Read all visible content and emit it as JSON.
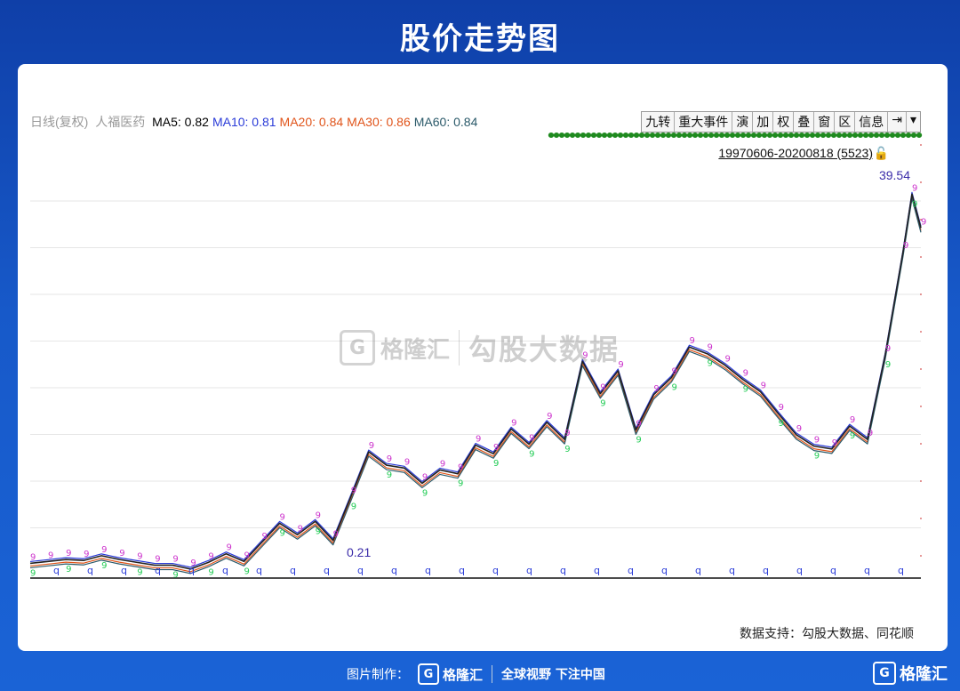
{
  "header": {
    "title": "股价走势图"
  },
  "legend": {
    "period": "日线(复权)",
    "stock": "人福医药",
    "ma": [
      {
        "label": "MA5:",
        "value": "0.82",
        "color": "#000000"
      },
      {
        "label": "MA10:",
        "value": "0.81",
        "color": "#2a3bd8"
      },
      {
        "label": "MA20:",
        "value": "0.84",
        "color": "#e0541a"
      },
      {
        "label": "MA30:",
        "value": "0.86",
        "color": "#e0541a"
      },
      {
        "label": "MA60:",
        "value": "0.84",
        "color": "#2b5a6a"
      }
    ]
  },
  "toolbar": {
    "buttons": [
      "九转",
      "重大事件",
      "演",
      "加",
      "权",
      "叠",
      "窗",
      "区",
      "信息",
      "⇥",
      "▾"
    ]
  },
  "range": {
    "label": "19970606-20200818 (5523)",
    "lock_icon": "lock-icon"
  },
  "chart_data": {
    "type": "line",
    "x_range": [
      "1997-06-06",
      "2020-08-18"
    ],
    "data_point_count": 5523,
    "max_label": "39.54",
    "min_label": "0.21",
    "grid": true,
    "series": [
      {
        "name": "",
        "x": [
          0,
          2,
          4,
          6,
          8,
          10,
          12,
          14,
          16,
          18,
          20,
          22,
          24,
          26,
          28,
          30,
          32,
          34,
          36,
          38,
          40,
          42,
          44,
          46,
          48,
          50,
          52,
          54,
          56,
          58,
          60,
          62,
          64,
          66,
          68,
          70,
          72,
          74,
          76,
          78,
          80,
          82,
          84,
          86,
          88,
          90,
          92,
          94,
          96,
          98,
          99,
          100
        ],
        "values": [
          0.8,
          1.0,
          1.2,
          1.1,
          1.6,
          1.2,
          0.9,
          0.6,
          0.6,
          0.2,
          0.9,
          1.8,
          1.0,
          3.0,
          5.0,
          3.8,
          5.2,
          3.2,
          7.8,
          12.5,
          11.1,
          10.8,
          9.2,
          10.6,
          10.2,
          13.2,
          12.3,
          14.9,
          13.3,
          15.6,
          13.8,
          22.0,
          18.6,
          21.0,
          14.8,
          18.5,
          20.3,
          23.5,
          22.8,
          21.6,
          20.1,
          18.8,
          16.5,
          14.3,
          13.1,
          12.8,
          15.2,
          13.8,
          22.7,
          33.5,
          39.54,
          36.0
        ],
        "color": "#222222"
      }
    ]
  },
  "watermark": {
    "logo": "G",
    "brand": "格隆汇",
    "text": "勾股大数据"
  },
  "source": "数据支持：勾股大数据、同花顺",
  "footer": {
    "made_by": "图片制作：",
    "brand": "格隆汇",
    "slogan": "全球视野 下注中国",
    "right_brand": "格隆汇",
    "logo": "G"
  }
}
